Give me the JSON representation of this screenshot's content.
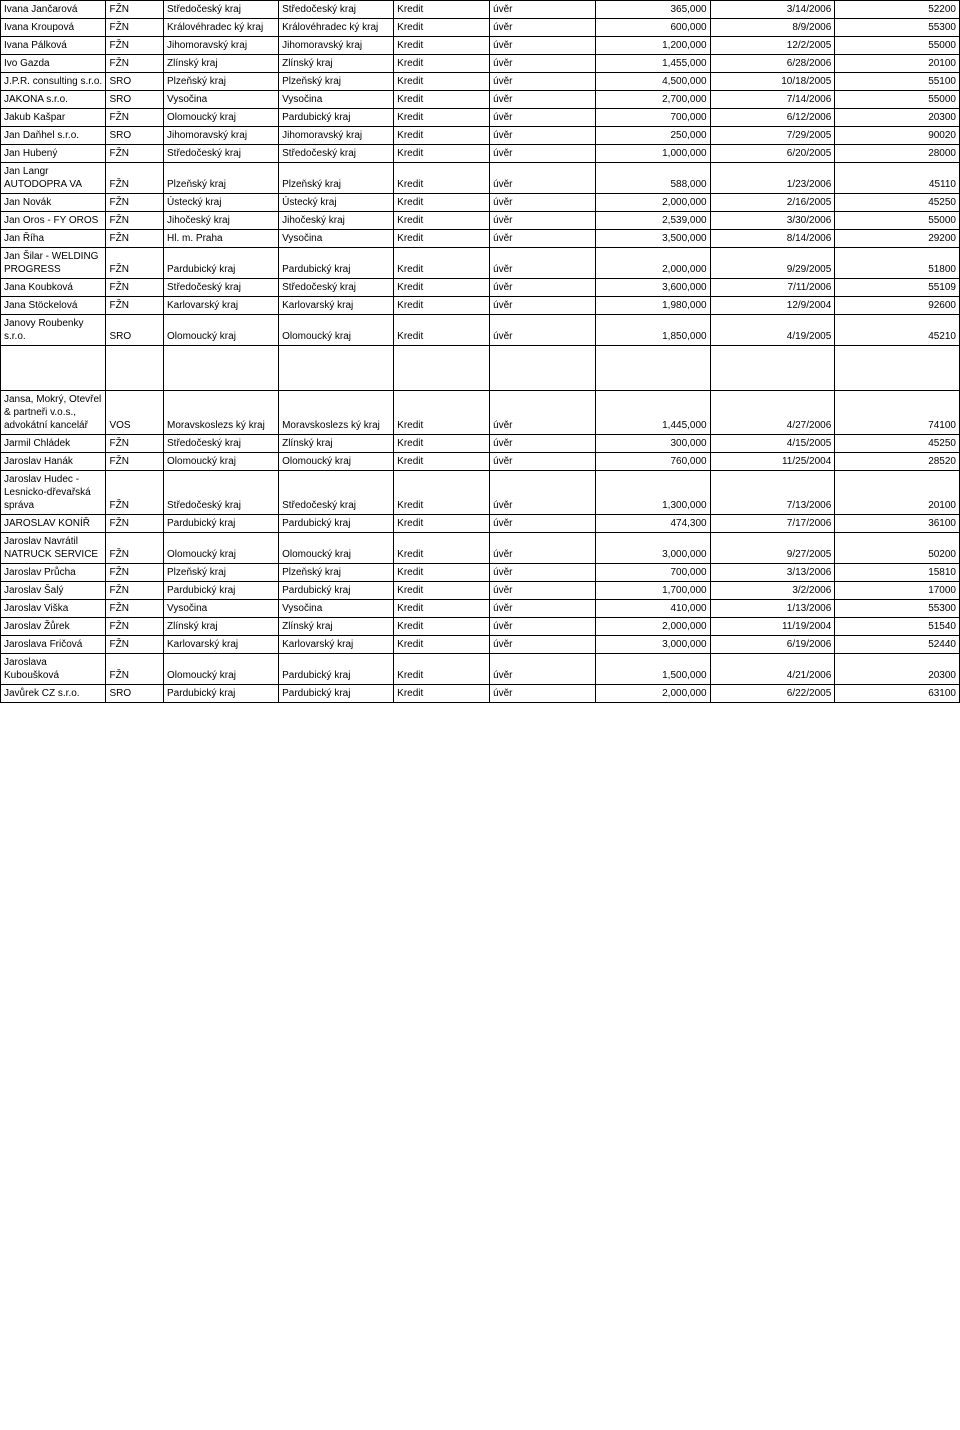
{
  "table": {
    "col_widths": [
      "11%",
      "6%",
      "12%",
      "12%",
      "10%",
      "11%",
      "12%",
      "13%",
      "13%"
    ],
    "rows": [
      {
        "name": "Ivana Jančarová",
        "type": "FŽN",
        "region1": "Středočeský kraj",
        "region2": "Středočeský kraj",
        "product": "Kredit",
        "kind": "úvěr",
        "amount": "365,000",
        "date": "3/14/2006",
        "code": "52200"
      },
      {
        "name": "Ivana Kroupová",
        "type": "FŽN",
        "region1": "Královéhradec ký kraj",
        "region2": "Královéhradec ký kraj",
        "product": "Kredit",
        "kind": "úvěr",
        "amount": "600,000",
        "date": "8/9/2006",
        "code": "55300"
      },
      {
        "name": "Ivana Pálková",
        "type": "FŽN",
        "region1": "Jihomoravský kraj",
        "region2": "Jihomoravský kraj",
        "product": "Kredit",
        "kind": "úvěr",
        "amount": "1,200,000",
        "date": "12/2/2005",
        "code": "55000"
      },
      {
        "name": "Ivo Gazda",
        "type": "FŽN",
        "region1": "Zlínský kraj",
        "region2": "Zlínský kraj",
        "product": "Kredit",
        "kind": "úvěr",
        "amount": "1,455,000",
        "date": "6/28/2006",
        "code": "20100"
      },
      {
        "name": "J.P.R. consulting s.r.o.",
        "type": "SRO",
        "region1": "Plzeňský kraj",
        "region2": "Plzeňský kraj",
        "product": "Kredit",
        "kind": "úvěr",
        "amount": "4,500,000",
        "date": "10/18/2005",
        "code": "55100"
      },
      {
        "name": "JAKONA s.r.o.",
        "type": "SRO",
        "region1": "Vysočina",
        "region2": "Vysočina",
        "product": "Kredit",
        "kind": "úvěr",
        "amount": "2,700,000",
        "date": "7/14/2006",
        "code": "55000"
      },
      {
        "name": "Jakub Kašpar",
        "type": "FŽN",
        "region1": "Olomoucký kraj",
        "region2": "Pardubický kraj",
        "product": "Kredit",
        "kind": "úvěr",
        "amount": "700,000",
        "date": "6/12/2006",
        "code": "20300"
      },
      {
        "name": "Jan Daňhel s.r.o.",
        "type": "SRO",
        "region1": "Jihomoravský kraj",
        "region2": "Jihomoravský kraj",
        "product": "Kredit",
        "kind": "úvěr",
        "amount": "250,000",
        "date": "7/29/2005",
        "code": "90020"
      },
      {
        "name": "Jan Hubený",
        "type": "FŽN",
        "region1": "Středočeský kraj",
        "region2": "Středočeský kraj",
        "product": "Kredit",
        "kind": "úvěr",
        "amount": "1,000,000",
        "date": "6/20/2005",
        "code": "28000"
      },
      {
        "name": "Jan Langr AUTODOPRA VA",
        "type": "FŽN",
        "region1": "Plzeňský kraj",
        "region2": "Plzeňský kraj",
        "product": "Kredit",
        "kind": "úvěr",
        "amount": "588,000",
        "date": "1/23/2006",
        "code": "45110"
      },
      {
        "name": "Jan Novák",
        "type": "FŽN",
        "region1": "Ústecký kraj",
        "region2": "Ústecký kraj",
        "product": "Kredit",
        "kind": "úvěr",
        "amount": "2,000,000",
        "date": "2/16/2005",
        "code": "45250"
      },
      {
        "name": "Jan Oros - FY OROS",
        "type": "FŽN",
        "region1": "Jihočeský kraj",
        "region2": "Jihočeský kraj",
        "product": "Kredit",
        "kind": "úvěr",
        "amount": "2,539,000",
        "date": "3/30/2006",
        "code": "55000"
      },
      {
        "name": "Jan Říha",
        "type": "FŽN",
        "region1": "Hl. m. Praha",
        "region2": "Vysočina",
        "product": "Kredit",
        "kind": "úvěr",
        "amount": "3,500,000",
        "date": "8/14/2006",
        "code": "29200"
      },
      {
        "name": "Jan Šilar - WELDING PROGRESS",
        "type": "FŽN",
        "region1": "Pardubický kraj",
        "region2": "Pardubický kraj",
        "product": "Kredit",
        "kind": "úvěr",
        "amount": "2,000,000",
        "date": "9/29/2005",
        "code": "51800"
      },
      {
        "name": "Jana Koubková",
        "type": "FŽN",
        "region1": "Středočeský kraj",
        "region2": "Středočeský kraj",
        "product": "Kredit",
        "kind": "úvěr",
        "amount": "3,600,000",
        "date": "7/11/2006",
        "code": "55109"
      },
      {
        "name": "Jana Stöckelová",
        "type": "FŽN",
        "region1": "Karlovarský kraj",
        "region2": "Karlovarský kraj",
        "product": "Kredit",
        "kind": "úvěr",
        "amount": "1,980,000",
        "date": "12/9/2004",
        "code": "92600"
      },
      {
        "name": "Janovy Roubenky s.r.o.",
        "type": "SRO",
        "region1": "Olomoucký kraj",
        "region2": "Olomoucký kraj",
        "product": "Kredit",
        "kind": "úvěr",
        "amount": "1,850,000",
        "date": "4/19/2005",
        "code": "45210"
      },
      {
        "name": "Jansa, Mokrý, Otevřel & partneři v.o.s., advokátní kancelář",
        "type": "VOS",
        "region1": "Moravskoslezs ký kraj",
        "region2": "Moravskoslezs ký kraj",
        "product": "Kredit",
        "kind": "úvěr",
        "amount": "1,445,000",
        "date": "4/27/2006",
        "code": "74100",
        "gap_before": true
      },
      {
        "name": "Jarmil Chládek",
        "type": "FŽN",
        "region1": "Středočeský kraj",
        "region2": "Zlínský kraj",
        "product": "Kredit",
        "kind": "úvěr",
        "amount": "300,000",
        "date": "4/15/2005",
        "code": "45250"
      },
      {
        "name": "Jaroslav Hanák",
        "type": "FŽN",
        "region1": "Olomoucký kraj",
        "region2": "Olomoucký kraj",
        "product": "Kredit",
        "kind": "úvěr",
        "amount": "760,000",
        "date": "11/25/2004",
        "code": "28520"
      },
      {
        "name": "Jaroslav Hudec - Lesnicko-dřevařská správa",
        "type": "FŽN",
        "region1": "Středočeský kraj",
        "region2": "Středočeský kraj",
        "product": "Kredit",
        "kind": "úvěr",
        "amount": "1,300,000",
        "date": "7/13/2006",
        "code": "20100"
      },
      {
        "name": "JAROSLAV KONÍŘ",
        "type": "FŽN",
        "region1": "Pardubický kraj",
        "region2": "Pardubický kraj",
        "product": "Kredit",
        "kind": "úvěr",
        "amount": "474,300",
        "date": "7/17/2006",
        "code": "36100"
      },
      {
        "name": "Jaroslav Navrátil NATRUCK SERVICE",
        "type": "FŽN",
        "region1": "Olomoucký kraj",
        "region2": "Olomoucký kraj",
        "product": "Kredit",
        "kind": "úvěr",
        "amount": "3,000,000",
        "date": "9/27/2005",
        "code": "50200"
      },
      {
        "name": "Jaroslav Průcha",
        "type": "FŽN",
        "region1": "Plzeňský kraj",
        "region2": "Plzeňský kraj",
        "product": "Kredit",
        "kind": "úvěr",
        "amount": "700,000",
        "date": "3/13/2006",
        "code": "15810"
      },
      {
        "name": "Jaroslav Šalý",
        "type": "FŽN",
        "region1": "Pardubický kraj",
        "region2": "Pardubický kraj",
        "product": "Kredit",
        "kind": "úvěr",
        "amount": "1,700,000",
        "date": "3/2/2006",
        "code": "17000"
      },
      {
        "name": "Jaroslav Viška",
        "type": "FŽN",
        "region1": "Vysočina",
        "region2": "Vysočina",
        "product": "Kredit",
        "kind": "úvěr",
        "amount": "410,000",
        "date": "1/13/2006",
        "code": "55300"
      },
      {
        "name": "Jaroslav Žůrek",
        "type": "FŽN",
        "region1": "Zlínský kraj",
        "region2": "Zlínský kraj",
        "product": "Kredit",
        "kind": "úvěr",
        "amount": "2,000,000",
        "date": "11/19/2004",
        "code": "51540"
      },
      {
        "name": "Jaroslava Fričová",
        "type": "FŽN",
        "region1": "Karlovarský kraj",
        "region2": "Karlovarský kraj",
        "product": "Kredit",
        "kind": "úvěr",
        "amount": "3,000,000",
        "date": "6/19/2006",
        "code": "52440"
      },
      {
        "name": "Jaroslava Kuboušková",
        "type": "FŽN",
        "region1": "Olomoucký kraj",
        "region2": "Pardubický kraj",
        "product": "Kredit",
        "kind": "úvěr",
        "amount": "1,500,000",
        "date": "4/21/2006",
        "code": "20300"
      },
      {
        "name": "Javůrek CZ s.r.o.",
        "type": "SRO",
        "region1": "Pardubický kraj",
        "region2": "Pardubický kraj",
        "product": "Kredit",
        "kind": "úvěr",
        "amount": "2,000,000",
        "date": "6/22/2005",
        "code": "63100"
      }
    ]
  }
}
